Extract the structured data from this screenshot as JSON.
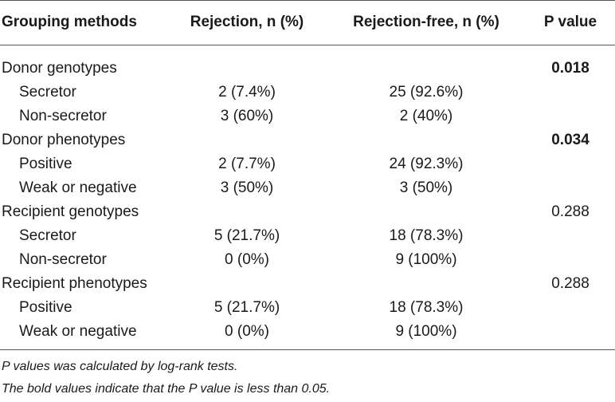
{
  "table": {
    "headers": [
      "Grouping methods",
      "Rejection, n (%)",
      "Rejection-free, n (%)",
      "P value"
    ],
    "rows": [
      {
        "label": "Donor genotypes",
        "rejection": "",
        "rejection_free": "",
        "p_value": "0.018"
      },
      {
        "label": "Secretor",
        "rejection": "2 (7.4%)",
        "rejection_free": "25 (92.6%)",
        "p_value": ""
      },
      {
        "label": "Non-secretor",
        "rejection": "3 (60%)",
        "rejection_free": "2 (40%)",
        "p_value": ""
      },
      {
        "label": "Donor phenotypes",
        "rejection": "",
        "rejection_free": "",
        "p_value": "0.034"
      },
      {
        "label": "Positive",
        "rejection": "2 (7.7%)",
        "rejection_free": "24 (92.3%)",
        "p_value": ""
      },
      {
        "label": "Weak or negative",
        "rejection": "3 (50%)",
        "rejection_free": "3 (50%)",
        "p_value": ""
      },
      {
        "label": "Recipient genotypes",
        "rejection": "",
        "rejection_free": "",
        "p_value": "0.288"
      },
      {
        "label": "Secretor",
        "rejection": "5 (21.7%)",
        "rejection_free": "18 (78.3%)",
        "p_value": ""
      },
      {
        "label": "Non-secretor",
        "rejection": "0 (0%)",
        "rejection_free": "9 (100%)",
        "p_value": ""
      },
      {
        "label": "Recipient phenotypes",
        "rejection": "",
        "rejection_free": "",
        "p_value": "0.288"
      },
      {
        "label": "Positive",
        "rejection": "5 (21.7%)",
        "rejection_free": "18 (78.3%)",
        "p_value": ""
      },
      {
        "label": "Weak or negative",
        "rejection": "0 (0%)",
        "rejection_free": "9 (100%)",
        "p_value": ""
      }
    ]
  },
  "notes": [
    "P values was calculated by log-rank tests.",
    "The bold values indicate that the P value is  less than 0.05."
  ]
}
